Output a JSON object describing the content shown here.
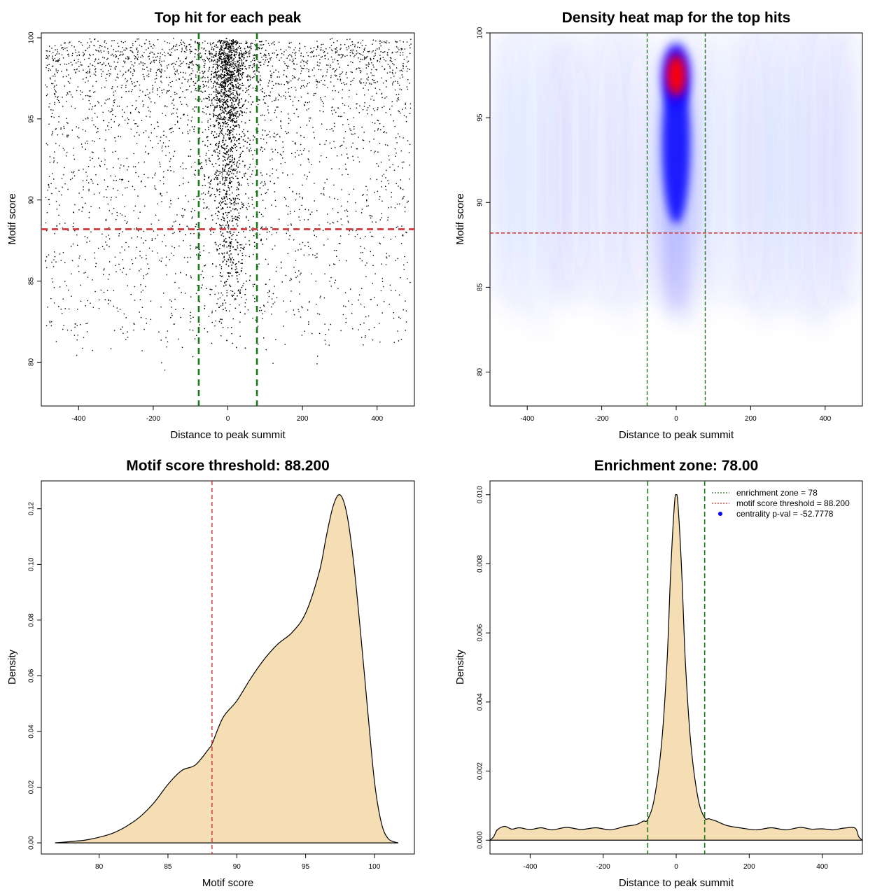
{
  "chart_data": [
    {
      "type": "scatter",
      "title": "Top hit for each peak",
      "xlabel": "Distance to peak summit",
      "ylabel": "Motif score",
      "xlim": [
        -500,
        500
      ],
      "ylim": [
        77.3,
        100.3
      ],
      "xticks": [
        -400,
        -200,
        0,
        200,
        400
      ],
      "xtick_labels": [
        "-400",
        "-200",
        "0",
        "200",
        "400"
      ],
      "yticks": [
        80,
        85,
        90,
        95,
        100
      ],
      "ytick_labels": [
        "80",
        "85",
        "90",
        "95",
        "100"
      ],
      "vlines": [
        -78,
        78
      ],
      "hline": 88.2,
      "vline_color": "#1a7a1a",
      "hline_color": "#d03030",
      "point_color": "#000000",
      "points_summary": {
        "background": {
          "n": 3200,
          "x_range": [
            -490,
            490
          ],
          "score_mode": 99,
          "score_min": 79
        },
        "central": {
          "n": 3800,
          "x_center": 0,
          "x_sd": 22,
          "score_mode": 97.5,
          "score_min": 80
        }
      }
    },
    {
      "type": "heatmap",
      "title": "Density heat map for the top hits",
      "xlabel": "Distance to peak summit",
      "ylabel": "Motif score",
      "xlim": [
        -500,
        500
      ],
      "ylim": [
        78,
        100
      ],
      "xticks": [
        -400,
        -200,
        0,
        200,
        400
      ],
      "xtick_labels": [
        "-400",
        "-200",
        "0",
        "200",
        "400"
      ],
      "yticks": [
        80,
        85,
        90,
        95,
        100
      ],
      "ytick_labels": [
        "80",
        "85",
        "90",
        "95",
        "100"
      ],
      "vlines": [
        -78,
        78
      ],
      "hline": 88.2,
      "color_scale": [
        "#ffffff",
        "#0000ff",
        "#ff0000"
      ],
      "vline_color": "#1a7a1a",
      "hline_color": "#d03030",
      "hotspot": {
        "x": 0,
        "y": 97.5
      }
    },
    {
      "type": "area",
      "title": "Motif score threshold: 88.200",
      "xlabel": "Motif score",
      "ylabel": "Density",
      "xlim": [
        75.8,
        102.9
      ],
      "ylim": [
        -0.004,
        0.13
      ],
      "xticks": [
        80,
        85,
        90,
        95,
        100
      ],
      "xtick_labels": [
        "80",
        "85",
        "90",
        "95",
        "100"
      ],
      "yticks": [
        0,
        0.02,
        0.04,
        0.06,
        0.08,
        0.1,
        0.12
      ],
      "ytick_labels": [
        "0.00",
        "0.02",
        "0.04",
        "0.06",
        "0.08",
        "0.10",
        "0.12"
      ],
      "x": [
        76.8,
        78,
        79,
        80,
        81,
        82,
        83,
        84,
        85,
        86,
        87,
        88,
        88.2,
        89,
        90,
        91,
        92,
        93,
        94,
        95,
        96,
        96.5,
        97,
        97.5,
        98,
        98.5,
        99,
        99.5,
        100,
        100.5,
        101,
        101.7
      ],
      "y": [
        0.0,
        0.0005,
        0.001,
        0.002,
        0.0035,
        0.006,
        0.0095,
        0.0145,
        0.021,
        0.026,
        0.028,
        0.034,
        0.0355,
        0.045,
        0.051,
        0.059,
        0.066,
        0.0715,
        0.0755,
        0.0825,
        0.0975,
        0.11,
        0.121,
        0.125,
        0.118,
        0.1,
        0.075,
        0.048,
        0.022,
        0.0072,
        0.0015,
        0.0
      ],
      "vline": 88.2,
      "fill_color": "#f5deb3",
      "vline_color": "#d03030"
    },
    {
      "type": "area",
      "title": "Enrichment zone: 78.00",
      "xlabel": "Distance to peak summit",
      "ylabel": "Density",
      "xlim": [
        -510,
        510
      ],
      "ylim": [
        -0.0004,
        0.0104
      ],
      "xticks": [
        -400,
        -200,
        0,
        200,
        400
      ],
      "xtick_labels": [
        "-400",
        "-200",
        "0",
        "200",
        "400"
      ],
      "yticks": [
        0,
        0.002,
        0.004,
        0.006,
        0.008,
        0.01
      ],
      "ytick_labels": [
        "0.000",
        "0.002",
        "0.004",
        "0.006",
        "0.008",
        "0.010"
      ],
      "x": [
        -510,
        -500,
        -490,
        -470,
        -450,
        -430,
        -400,
        -370,
        -340,
        -300,
        -260,
        -220,
        -180,
        -140,
        -110,
        -90,
        -78,
        -60,
        -40,
        -25,
        -15,
        -5,
        0,
        5,
        15,
        25,
        40,
        60,
        78,
        90,
        110,
        140,
        180,
        220,
        260,
        300,
        340,
        370,
        400,
        430,
        460,
        490,
        500,
        510
      ],
      "y": [
        0,
        0.0001,
        0.0003,
        0.0004,
        0.00032,
        0.00036,
        0.00031,
        0.00036,
        0.0003,
        0.00037,
        0.00031,
        0.00036,
        0.0003,
        0.0004,
        0.00045,
        0.00055,
        0.0006,
        0.0012,
        0.0028,
        0.0052,
        0.0078,
        0.0097,
        0.01,
        0.0097,
        0.0078,
        0.0052,
        0.0028,
        0.0012,
        0.00065,
        0.00062,
        0.00055,
        0.00042,
        0.00035,
        0.0003,
        0.00036,
        0.0003,
        0.00037,
        0.00032,
        0.00033,
        0.0003,
        0.00035,
        0.00035,
        0.0001,
        0
      ],
      "vlines": [
        -78,
        78
      ],
      "fill_color": "#f5deb3",
      "vline_color": "#1a7a1a",
      "legend": {
        "position": "top-right",
        "entries": [
          {
            "label": "enrichment zone = 78",
            "color": "#1a7a1a",
            "style": "dotted-line"
          },
          {
            "label": "motif score threshold = 88.200",
            "color": "#d03030",
            "style": "dotted-line"
          },
          {
            "label": "centrality p-val = -52.7778",
            "color": "#0000ff",
            "style": "point"
          }
        ]
      }
    }
  ]
}
